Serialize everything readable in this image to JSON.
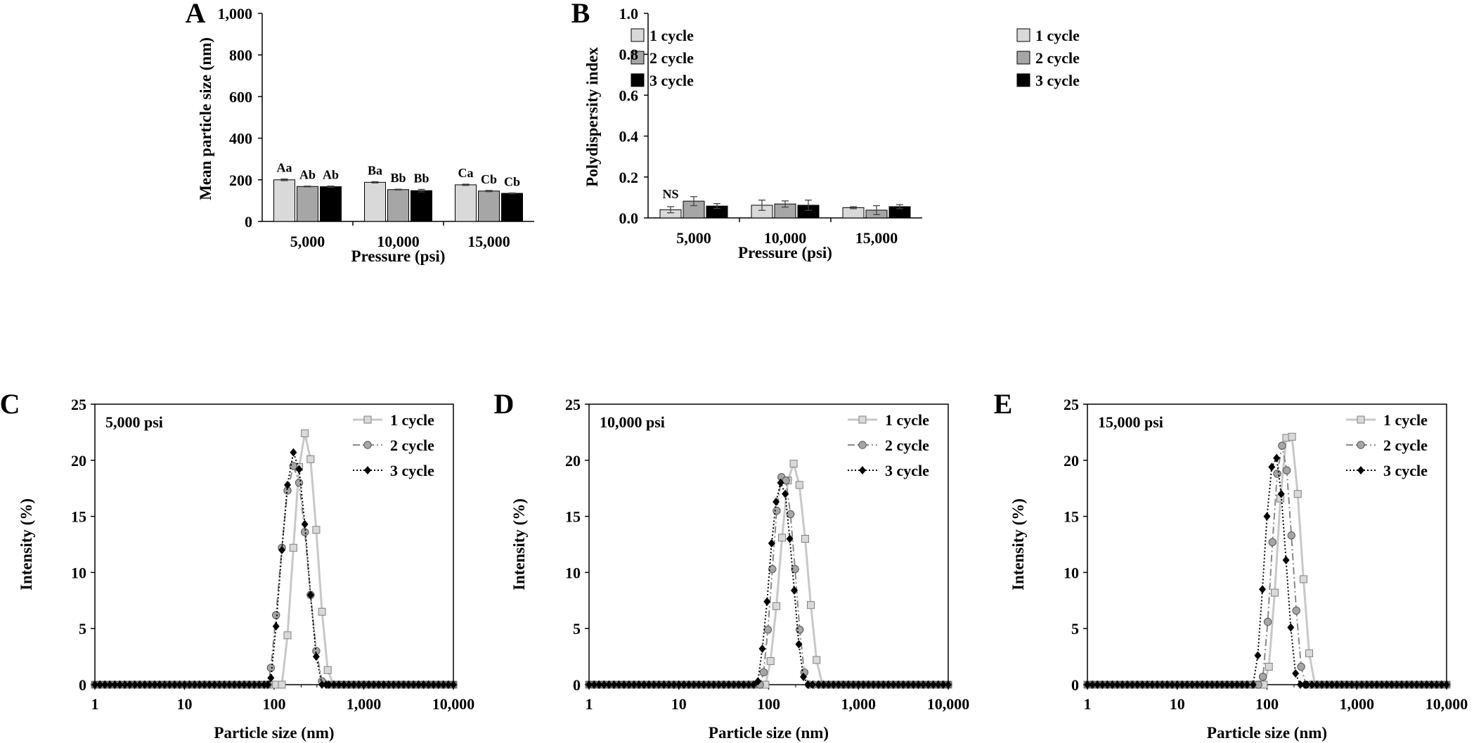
{
  "chart_data": [
    {
      "panel": "A",
      "type": "bar",
      "xlabel": "Pressure (psi)",
      "ylabel": "Mean particle size (nm)",
      "ylim": [
        0,
        1000
      ],
      "yticks": [
        "0",
        "200",
        "400",
        "600",
        "800",
        "1,000"
      ],
      "categories": [
        "5,000",
        "10,000",
        "15,000"
      ],
      "series": [
        {
          "name": "1 cycle",
          "values": [
            200,
            188,
            176
          ],
          "errors": [
            4,
            3,
            3
          ],
          "labels": [
            "Aa",
            "Ba",
            "Ca"
          ],
          "color": "#d9d9d9"
        },
        {
          "name": "2 cycle",
          "values": [
            168,
            153,
            146
          ],
          "errors": [
            2,
            2,
            3
          ],
          "labels": [
            "Ab",
            "Bb",
            "Cb"
          ],
          "color": "#a6a6a6"
        },
        {
          "name": "3 cycle",
          "values": [
            167,
            148,
            135
          ],
          "errors": [
            3,
            6,
            2
          ],
          "labels": [
            "Ab",
            "Bb",
            "Cb"
          ],
          "color": "#000000"
        }
      ],
      "legend": "top-right",
      "grid": false
    },
    {
      "panel": "B",
      "type": "bar",
      "xlabel": "Pressure (psi)",
      "ylabel": "Polydispersity index",
      "ylim": [
        0,
        1.0
      ],
      "yticks": [
        "0.0",
        "0.2",
        "0.4",
        "0.6",
        "0.8",
        "1.0"
      ],
      "categories": [
        "5,000",
        "10,000",
        "15,000"
      ],
      "annotation": "NS",
      "series": [
        {
          "name": "1 cycle",
          "values": [
            0.04,
            0.062,
            0.05
          ],
          "errors": [
            0.015,
            0.025,
            0.005
          ],
          "color": "#d9d9d9"
        },
        {
          "name": "2 cycle",
          "values": [
            0.082,
            0.068,
            0.038
          ],
          "errors": [
            0.022,
            0.015,
            0.022
          ],
          "color": "#a6a6a6"
        },
        {
          "name": "3 cycle",
          "values": [
            0.058,
            0.062,
            0.055
          ],
          "errors": [
            0.012,
            0.025,
            0.01
          ],
          "color": "#000000"
        }
      ],
      "legend": "top-right",
      "grid": false
    },
    {
      "panel": "C",
      "type": "line",
      "annotation": "5,000 psi",
      "xscale": "log",
      "xlim": [
        1,
        10000
      ],
      "xticks": [
        "1",
        "10",
        "100",
        "1,000",
        "10,000"
      ],
      "ylim": [
        0,
        25
      ],
      "yticks": [
        "0",
        "5",
        "10",
        "15",
        "20",
        "25"
      ],
      "xlabel": "Particle size (nm)",
      "ylabel": "Intensity (%)",
      "legend": "top-right",
      "series": [
        {
          "name": "1 cycle",
          "x": [
            105,
            122,
            141,
            164,
            190,
            220,
            255,
            295,
            342,
            396,
            459
          ],
          "y": [
            0,
            0,
            4.4,
            12.2,
            19.4,
            22.4,
            20.1,
            13.8,
            6.5,
            1.3,
            0
          ]
        },
        {
          "name": "2 cycle",
          "x": [
            85,
            92,
            105,
            122,
            141,
            164,
            190,
            220,
            255,
            295,
            342,
            396
          ],
          "y": [
            0,
            1.5,
            6.2,
            12.2,
            17.3,
            19.5,
            18.0,
            13.6,
            8.0,
            3.0,
            0.3,
            0
          ]
        },
        {
          "name": "3 cycle",
          "x": [
            85,
            92,
            105,
            122,
            141,
            164,
            190,
            220,
            255,
            295,
            342,
            380
          ],
          "y": [
            0,
            0.6,
            5.2,
            12.0,
            17.8,
            20.7,
            19.2,
            14.3,
            8.0,
            2.5,
            0,
            0
          ]
        }
      ]
    },
    {
      "panel": "D",
      "type": "line",
      "annotation": "10,000 psi",
      "xscale": "log",
      "xlim": [
        1,
        10000
      ],
      "xticks": [
        "1",
        "10",
        "100",
        "1,000",
        "10,000"
      ],
      "ylim": [
        0,
        25
      ],
      "yticks": [
        "0",
        "5",
        "10",
        "15",
        "20",
        "25"
      ],
      "xlabel": "Particle size (nm)",
      "ylabel": "Intensity (%)",
      "legend": "top-right",
      "series": [
        {
          "name": "1 cycle",
          "x": [
            92,
            105,
            122,
            141,
            164,
            190,
            220,
            255,
            295,
            342,
            396
          ],
          "y": [
            0,
            2.1,
            7.0,
            13.1,
            18.2,
            19.7,
            17.8,
            13.0,
            7.1,
            2.2,
            0
          ]
        },
        {
          "name": "2 cycle",
          "x": [
            80,
            88,
            98,
            110,
            123,
            139,
            156,
            175,
            197,
            222,
            250,
            281,
            316
          ],
          "y": [
            0,
            1.1,
            4.9,
            10.3,
            15.5,
            18.5,
            18.2,
            15.2,
            10.3,
            4.9,
            1.1,
            0,
            0
          ]
        },
        {
          "name": "3 cycle",
          "x": [
            68,
            76,
            85,
            96,
            108,
            121,
            136,
            153,
            172,
            193,
            217,
            244,
            274,
            308
          ],
          "y": [
            0,
            0.3,
            3.2,
            7.4,
            12.6,
            16.3,
            18.0,
            17.0,
            13.0,
            8.4,
            3.6,
            0.7,
            0,
            0
          ]
        }
      ]
    },
    {
      "panel": "E",
      "type": "line",
      "annotation": "15,000 psi",
      "xscale": "log",
      "xlim": [
        1,
        10000
      ],
      "xticks": [
        "1",
        "10",
        "100",
        "1,000",
        "10,000"
      ],
      "ylim": [
        0,
        25
      ],
      "yticks": [
        "0",
        "5",
        "10",
        "15",
        "20",
        "25"
      ],
      "xlabel": "Particle size (nm)",
      "ylabel": "Intensity (%)",
      "legend": "top-right",
      "series": [
        {
          "name": "1 cycle",
          "x": [
            92,
            105,
            122,
            141,
            164,
            190,
            220,
            255,
            295,
            342,
            380
          ],
          "y": [
            0,
            1.6,
            8.2,
            16.6,
            22.0,
            22.1,
            17.0,
            9.4,
            2.8,
            0,
            0
          ]
        },
        {
          "name": "2 cycle",
          "x": [
            80,
            90,
            102,
            115,
            130,
            147,
            166,
            187,
            212,
            240,
            271,
            306
          ],
          "y": [
            0,
            0.7,
            5.6,
            12.7,
            18.8,
            21.3,
            19.1,
            13.3,
            6.6,
            1.6,
            0,
            0
          ]
        },
        {
          "name": "3 cycle",
          "x": [
            70,
            79,
            89,
            100,
            113,
            128,
            144,
            163,
            184,
            208,
            235,
            265
          ],
          "y": [
            0,
            2.6,
            8.5,
            15.0,
            19.4,
            20.2,
            17.0,
            11.1,
            5.1,
            1.0,
            0,
            0
          ]
        }
      ]
    }
  ]
}
